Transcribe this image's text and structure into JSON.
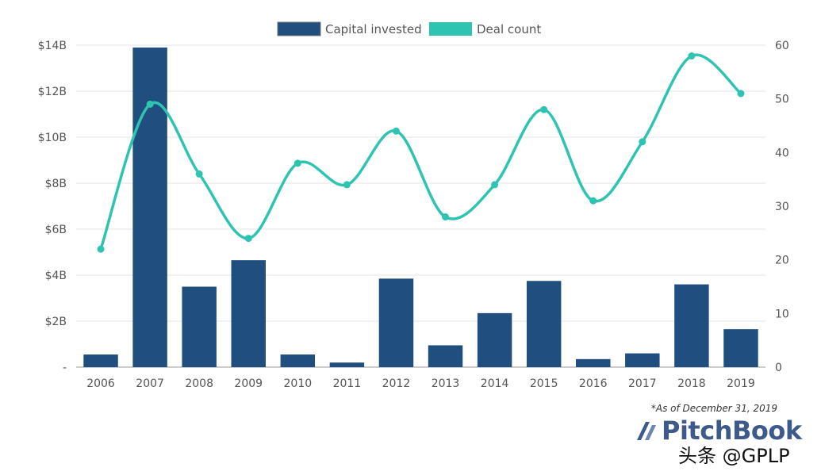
{
  "chart_data": {
    "type": "bar+line",
    "categories": [
      "2006",
      "2007",
      "2008",
      "2009",
      "2010",
      "2011",
      "2012",
      "2013",
      "2014",
      "2015",
      "2016",
      "2017",
      "2018",
      "2019"
    ],
    "series": [
      {
        "name": "Capital invested",
        "axis": "left",
        "kind": "bar",
        "values": [
          0.55,
          13.9,
          3.5,
          4.65,
          0.55,
          0.2,
          3.85,
          0.95,
          2.35,
          3.75,
          0.35,
          0.6,
          3.6,
          1.65
        ]
      },
      {
        "name": "Deal count",
        "axis": "right",
        "kind": "line",
        "values": [
          22,
          49,
          36,
          24,
          38,
          34,
          44,
          28,
          34,
          48,
          31,
          42,
          58,
          51
        ]
      }
    ],
    "left_axis": {
      "ticks": [
        "-",
        "$2B",
        "$4B",
        "$6B",
        "$8B",
        "$10B",
        "$12B",
        "$14B"
      ],
      "range": [
        0,
        14
      ]
    },
    "right_axis": {
      "ticks": [
        "0",
        "10",
        "20",
        "30",
        "40",
        "50",
        "60"
      ],
      "range": [
        0,
        60
      ]
    },
    "legend": [
      "Capital invested",
      "Deal count"
    ],
    "legend_position": "top-center",
    "grid": true,
    "colors": {
      "bar": "#1f4e7f",
      "line": "#2ec4b1",
      "grid": "#e3e3e3"
    }
  },
  "footnote": "*As of December 31, 2019",
  "brand": {
    "name": "PitchBook",
    "icon": "pitchbook-logo-icon"
  },
  "watermark": "头条 @GPLP"
}
